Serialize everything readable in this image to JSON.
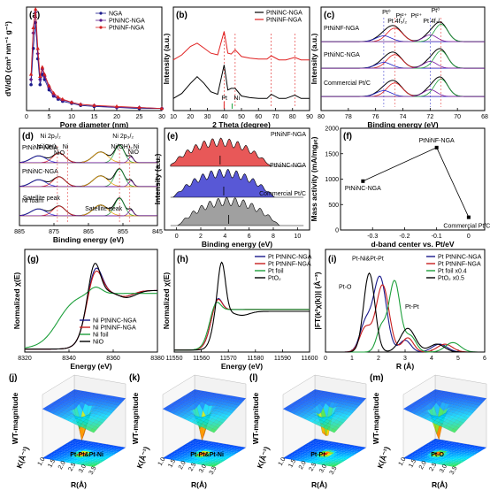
{
  "chart_data": [
    {
      "panel": "a",
      "type": "line",
      "xlabel": "Pore diameter (nm)",
      "ylabel": "dV/dD (cm³ nm⁻¹ g⁻¹)",
      "xlim": [
        0,
        30
      ],
      "ylim": [
        0,
        1.0
      ],
      "xticks": [
        0,
        5,
        10,
        15,
        20,
        25,
        30
      ],
      "legend": "top-right",
      "series": [
        {
          "name": "NGA",
          "color": "#1a1a8c",
          "marker": "circle",
          "x": [
            1,
            1.5,
            2,
            2.5,
            3,
            3.5,
            4,
            5,
            6,
            7,
            8,
            10,
            12,
            15,
            20,
            25,
            30
          ],
          "y": [
            0.25,
            0.6,
            0.85,
            0.5,
            0.25,
            0.35,
            0.3,
            0.2,
            0.14,
            0.11,
            0.09,
            0.07,
            0.05,
            0.04,
            0.03,
            0.02,
            0.02
          ]
        },
        {
          "name": "PtNiNC-NGA",
          "color": "#5a1a8c",
          "marker": "diamond",
          "x": [
            1,
            1.5,
            2,
            2.5,
            3,
            3.5,
            4,
            5,
            6,
            7,
            8,
            10,
            12,
            15,
            20,
            25,
            30
          ],
          "y": [
            0.3,
            0.75,
            0.95,
            0.55,
            0.3,
            0.4,
            0.33,
            0.22,
            0.15,
            0.12,
            0.1,
            0.08,
            0.06,
            0.05,
            0.03,
            0.03,
            0.02
          ]
        },
        {
          "name": "PtNiNF-NGA",
          "color": "#d42020",
          "marker": "triangle",
          "x": [
            1,
            1.5,
            2,
            2.5,
            3,
            3.5,
            4,
            5,
            6,
            7,
            8,
            10,
            12,
            15,
            20,
            25,
            30
          ],
          "y": [
            0.35,
            0.8,
            0.98,
            0.6,
            0.33,
            0.42,
            0.35,
            0.24,
            0.17,
            0.13,
            0.11,
            0.08,
            0.06,
            0.05,
            0.04,
            0.03,
            0.02
          ]
        }
      ]
    },
    {
      "panel": "b",
      "type": "line",
      "xlabel": "2 Theta (degree)",
      "ylabel": "Intensity (a.u.)",
      "xlim": [
        10,
        90
      ],
      "xticks": [
        10,
        20,
        30,
        40,
        50,
        60,
        70,
        80,
        90
      ],
      "legend": "top-right",
      "series": [
        {
          "name": "PtNiNC-NGA",
          "color": "#000000",
          "x": [
            10,
            15,
            20,
            24,
            28,
            32,
            36,
            39.8,
            42,
            44,
            46.3,
            50,
            55,
            60,
            65,
            67.5,
            72,
            76,
            81.3,
            85,
            90
          ],
          "y": [
            0.3,
            0.6,
            1.2,
            1.6,
            1.2,
            0.7,
            0.55,
            2.3,
            0.8,
            0.9,
            0.9,
            0.45,
            0.35,
            0.3,
            0.3,
            0.55,
            0.3,
            0.3,
            0.5,
            0.3,
            0.3
          ]
        },
        {
          "name": "PtNiNF-NGA",
          "color": "#e02020",
          "x": [
            10,
            15,
            20,
            24,
            28,
            32,
            36,
            39.8,
            42,
            44,
            46.3,
            50,
            55,
            60,
            65,
            67.5,
            72,
            76,
            81.3,
            85,
            90
          ],
          "y": [
            2.6,
            2.9,
            3.4,
            3.6,
            3.3,
            3.0,
            2.9,
            4.3,
            3.0,
            2.95,
            3.2,
            2.8,
            2.7,
            2.65,
            2.65,
            2.85,
            2.6,
            2.6,
            2.75,
            2.6,
            2.6
          ]
        }
      ],
      "ref_lines": [
        39.8,
        46.3,
        67.5,
        81.3
      ],
      "ref_labels": [
        "Pt",
        "Ni"
      ]
    },
    {
      "panel": "c",
      "type": "line",
      "xlabel": "Binding energy (eV)",
      "ylabel": "Intensity (a.u.)",
      "xlim": [
        80,
        68
      ],
      "xticks": [
        80,
        78,
        76,
        74,
        72,
        70,
        68
      ],
      "samples": [
        "PtNiNF-NGA",
        "PtNiNC-NGA",
        "Commercial Pt/C"
      ],
      "annotations": [
        "Pt²⁺",
        "Pt⁰",
        "Pt 4f₅/₂",
        "Pt²⁺",
        "Pt 4f₇/₂",
        "Pt⁰"
      ],
      "peaks_eV": [
        75.4,
        74.6,
        72.0,
        71.2
      ]
    },
    {
      "panel": "d",
      "type": "line",
      "xlabel": "Binding energy (eV)",
      "ylabel": "Intensity (a.u.)",
      "xlim": [
        885,
        845
      ],
      "xticks": [
        885,
        875,
        865,
        855,
        845
      ],
      "samples": [
        "PtNiNF-NGA",
        "PtNiNC-NGA",
        "Ni foam"
      ],
      "annotations": [
        "Ni 2p₁/₂",
        "Ni 2p₃/₂",
        "Ni(OH)₂",
        "NiO",
        "Ni",
        "Ni(OH)₂",
        "NiO",
        "Ni",
        "Satellite peak",
        "Satellite peak"
      ]
    },
    {
      "panel": "e",
      "type": "area",
      "xlabel": "Binding energy (eV)",
      "ylabel": "Intensity (a.u.)",
      "xlim": [
        -1,
        11
      ],
      "xticks": [
        0,
        2,
        4,
        6,
        8,
        10
      ],
      "series": [
        {
          "name": "PtNiNF-NGA",
          "color": "#e02020",
          "center": 3.6
        },
        {
          "name": "PtNiNC-NGA",
          "color": "#2020c8",
          "center": 3.9
        },
        {
          "name": "Commercial Pt/C",
          "color": "#808080",
          "center": 4.3
        }
      ]
    },
    {
      "panel": "f",
      "type": "scatter",
      "xlabel": "d-band center vs. Pt/eV",
      "ylabel": "Mass activity (mA/mgₚₜ)",
      "xlim": [
        -0.4,
        0.05
      ],
      "ylim": [
        0,
        2000
      ],
      "xticks": [
        -0.3,
        -0.2,
        -0.1,
        0.0
      ],
      "yticks": [
        0,
        500,
        1000,
        1500,
        2000
      ],
      "points": [
        {
          "label": "PtNiNC-NGA",
          "x": -0.33,
          "y": 960
        },
        {
          "label": "PtNiNF-NGA",
          "x": -0.1,
          "y": 1620
        },
        {
          "label": "Commercial Pt/C",
          "x": 0.0,
          "y": 250
        }
      ]
    },
    {
      "panel": "g",
      "type": "line",
      "xlabel": "Energy (eV)",
      "ylabel": "Normalized χ(E)",
      "xlim": [
        8320,
        8380
      ],
      "xticks": [
        8320,
        8340,
        8360,
        8380
      ],
      "legend": "bottom-right",
      "series": [
        {
          "name": "Ni PtNiNC-NGA",
          "color": "#1a1a8c"
        },
        {
          "name": "Ni PtNiNF-NGA",
          "color": "#c81e1e"
        },
        {
          "name": "Ni foil",
          "color": "#1ea03c"
        },
        {
          "name": "NiO",
          "color": "#000000"
        }
      ]
    },
    {
      "panel": "h",
      "type": "line",
      "xlabel": "Energy (eV)",
      "ylabel": "Normalized χ(E)",
      "xlim": [
        11550,
        11600
      ],
      "xticks": [
        11550,
        11560,
        11570,
        11580,
        11590,
        11600
      ],
      "legend": "top-right",
      "series": [
        {
          "name": "Pt PtNiNC-NGA",
          "color": "#1a1a8c"
        },
        {
          "name": "Pt PtNiNF-NGA",
          "color": "#c81e1e"
        },
        {
          "name": "Pt foil",
          "color": "#1ea03c"
        },
        {
          "name": "PtO₂",
          "color": "#000000"
        }
      ]
    },
    {
      "panel": "i",
      "type": "line",
      "xlabel": "R (Å)",
      "ylabel": "|FT(k²χ(k))| (Å⁻³)",
      "xlim": [
        0,
        6
      ],
      "xticks": [
        0,
        1,
        2,
        3,
        4,
        5,
        6
      ],
      "legend": "top-right",
      "series": [
        {
          "name": "Pt PtNiNC-NGA",
          "color": "#1a1a8c"
        },
        {
          "name": "Pt PtNiNF-NGA",
          "color": "#c81e1e"
        },
        {
          "name": "Pt foil x0.4",
          "color": "#1ea03c"
        },
        {
          "name": "PtO₂ x0.5",
          "color": "#000000"
        }
      ],
      "annotations": [
        "Pt-Ni&Pt-Pt",
        "Pt-O",
        "Pt-Pt"
      ]
    },
    {
      "panel": "j",
      "type": "heatmap",
      "zlabel": "WT-magnitude",
      "xlabel": "K(Å⁻¹)",
      "ylabel": "R(Å)",
      "annotation": "Pt-Pt&Pt-Ni"
    },
    {
      "panel": "k",
      "type": "heatmap",
      "zlabel": "WT-magnitude",
      "xlabel": "K(Å⁻¹)",
      "ylabel": "R(Å)",
      "annotation": "Pt-Pt&Pt-Ni"
    },
    {
      "panel": "l",
      "type": "heatmap",
      "zlabel": "WT-magnitude",
      "xlabel": "K(Å⁻¹)",
      "ylabel": "R(Å)",
      "annotation": "Pt-Pt"
    },
    {
      "panel": "m",
      "type": "heatmap",
      "zlabel": "WT-magnitude",
      "xlabel": "K(Å⁻¹)",
      "ylabel": "R(Å)",
      "annotation": "Pt-O"
    }
  ],
  "panel_letters": [
    "(a)",
    "(b)",
    "(c)",
    "(d)",
    "(e)",
    "(f)",
    "(g)",
    "(h)",
    "(i)",
    "(j)",
    "(k)",
    "(l)",
    "(m)"
  ],
  "wt_tick_labels": [
    "1.0",
    "1.5",
    "2.0",
    "2.5",
    "3.0",
    "3.5"
  ]
}
